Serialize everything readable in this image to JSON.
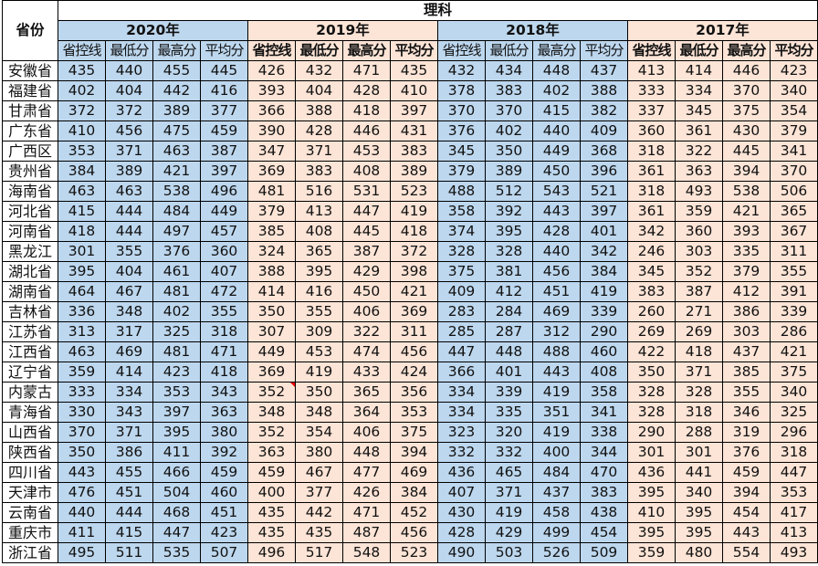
{
  "header": {
    "province_label": "省份",
    "category": "理科",
    "years": [
      "2020年",
      "2019年",
      "2018年",
      "2017年"
    ],
    "columns": [
      "省控线",
      "最低分",
      "最高分",
      "平均分"
    ]
  },
  "colors": {
    "blue": "#bdd7ee",
    "peach": "#fce4d6"
  },
  "rows": [
    {
      "province": "安徽省",
      "values": [
        435,
        440,
        455,
        445,
        426,
        432,
        471,
        435,
        432,
        434,
        448,
        437,
        413,
        414,
        446,
        423
      ]
    },
    {
      "province": "福建省",
      "values": [
        402,
        404,
        442,
        416,
        393,
        404,
        428,
        410,
        378,
        383,
        402,
        388,
        333,
        334,
        370,
        340
      ]
    },
    {
      "province": "甘肃省",
      "values": [
        372,
        372,
        389,
        377,
        366,
        388,
        418,
        397,
        370,
        370,
        415,
        382,
        337,
        345,
        375,
        354
      ]
    },
    {
      "province": "广东省",
      "values": [
        410,
        456,
        475,
        459,
        390,
        428,
        446,
        431,
        376,
        402,
        440,
        409,
        360,
        361,
        430,
        379
      ]
    },
    {
      "province": "广西区",
      "values": [
        353,
        371,
        463,
        387,
        347,
        371,
        453,
        383,
        345,
        350,
        449,
        368,
        318,
        322,
        445,
        341
      ]
    },
    {
      "province": "贵州省",
      "values": [
        384,
        389,
        421,
        397,
        369,
        383,
        408,
        389,
        379,
        389,
        450,
        396,
        361,
        363,
        394,
        370
      ]
    },
    {
      "province": "海南省",
      "values": [
        463,
        463,
        538,
        496,
        481,
        516,
        531,
        523,
        488,
        512,
        543,
        521,
        318,
        493,
        538,
        506
      ]
    },
    {
      "province": "河北省",
      "values": [
        415,
        444,
        484,
        449,
        379,
        413,
        447,
        419,
        358,
        392,
        443,
        397,
        361,
        359,
        421,
        365
      ]
    },
    {
      "province": "河南省",
      "values": [
        418,
        444,
        497,
        457,
        385,
        408,
        445,
        418,
        374,
        395,
        428,
        401,
        342,
        360,
        393,
        367
      ]
    },
    {
      "province": "黑龙江",
      "values": [
        301,
        355,
        376,
        360,
        324,
        365,
        387,
        372,
        328,
        328,
        440,
        342,
        246,
        303,
        335,
        311
      ]
    },
    {
      "province": "湖北省",
      "values": [
        395,
        404,
        461,
        407,
        388,
        395,
        429,
        398,
        375,
        381,
        456,
        384,
        345,
        352,
        379,
        355
      ]
    },
    {
      "province": "湖南省",
      "values": [
        464,
        467,
        481,
        472,
        414,
        416,
        450,
        421,
        409,
        412,
        451,
        419,
        383,
        387,
        412,
        391
      ]
    },
    {
      "province": "吉林省",
      "values": [
        336,
        348,
        402,
        355,
        350,
        355,
        406,
        369,
        283,
        284,
        469,
        339,
        260,
        271,
        386,
        339
      ]
    },
    {
      "province": "江苏省",
      "values": [
        313,
        317,
        325,
        318,
        307,
        309,
        322,
        311,
        285,
        287,
        312,
        290,
        269,
        269,
        303,
        286
      ]
    },
    {
      "province": "江西省",
      "values": [
        463,
        469,
        481,
        471,
        449,
        453,
        474,
        456,
        447,
        448,
        488,
        460,
        422,
        418,
        437,
        421
      ]
    },
    {
      "province": "辽宁省",
      "values": [
        359,
        414,
        423,
        418,
        369,
        419,
        433,
        424,
        366,
        401,
        443,
        408,
        350,
        371,
        385,
        375
      ]
    },
    {
      "province": "内蒙古",
      "values": [
        333,
        334,
        353,
        343,
        352,
        350,
        365,
        356,
        334,
        339,
        419,
        358,
        328,
        328,
        355,
        340
      ]
    },
    {
      "province": "青海省",
      "values": [
        330,
        343,
        397,
        363,
        348,
        348,
        364,
        353,
        334,
        335,
        351,
        341,
        328,
        318,
        346,
        325
      ]
    },
    {
      "province": "山西省",
      "values": [
        370,
        371,
        395,
        380,
        352,
        354,
        406,
        375,
        323,
        320,
        419,
        338,
        290,
        288,
        319,
        296
      ]
    },
    {
      "province": "陕西省",
      "values": [
        350,
        386,
        411,
        392,
        363,
        380,
        448,
        394,
        332,
        332,
        400,
        344,
        301,
        301,
        376,
        318
      ]
    },
    {
      "province": "四川省",
      "values": [
        443,
        455,
        466,
        459,
        459,
        467,
        477,
        469,
        436,
        465,
        484,
        470,
        436,
        441,
        459,
        447
      ]
    },
    {
      "province": "天津市",
      "values": [
        476,
        451,
        504,
        460,
        400,
        377,
        426,
        384,
        407,
        371,
        437,
        383,
        395,
        340,
        394,
        353
      ]
    },
    {
      "province": "云南省",
      "values": [
        440,
        444,
        468,
        451,
        435,
        442,
        471,
        452,
        430,
        419,
        458,
        438,
        410,
        395,
        454,
        417
      ]
    },
    {
      "province": "重庆市",
      "values": [
        411,
        415,
        447,
        423,
        435,
        435,
        487,
        456,
        428,
        429,
        499,
        454,
        395,
        395,
        443,
        413
      ]
    },
    {
      "province": "浙江省",
      "values": [
        495,
        511,
        535,
        507,
        496,
        517,
        548,
        523,
        490,
        503,
        526,
        509,
        359,
        480,
        554,
        493
      ]
    }
  ]
}
